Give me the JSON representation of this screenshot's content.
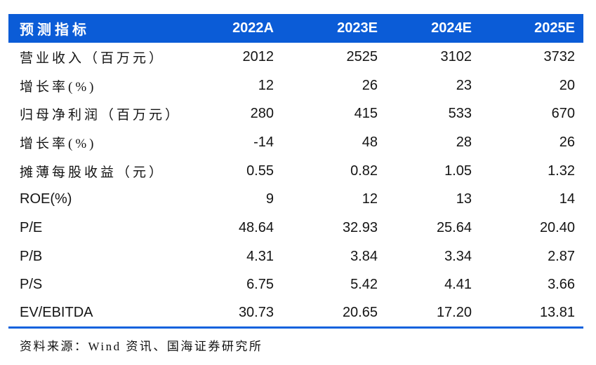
{
  "table": {
    "header": {
      "label": "预测指标",
      "cols": [
        "2022A",
        "2023E",
        "2024E",
        "2025E"
      ]
    },
    "rows": [
      {
        "label": "营业收入（百万元）",
        "values": [
          "2012",
          "2525",
          "3102",
          "3732"
        ]
      },
      {
        "label": "增长率(%)",
        "values": [
          "12",
          "26",
          "23",
          "20"
        ]
      },
      {
        "label": "归母净利润（百万元）",
        "values": [
          "280",
          "415",
          "533",
          "670"
        ]
      },
      {
        "label": "增长率(%)",
        "values": [
          "-14",
          "48",
          "28",
          "26"
        ]
      },
      {
        "label": "摊薄每股收益（元）",
        "values": [
          "0.55",
          "0.82",
          "1.05",
          "1.32"
        ]
      },
      {
        "label": "ROE(%)",
        "values": [
          "9",
          "12",
          "13",
          "14"
        ]
      },
      {
        "label": "P/E",
        "values": [
          "48.64",
          "32.93",
          "25.64",
          "20.40"
        ]
      },
      {
        "label": "P/B",
        "values": [
          "4.31",
          "3.84",
          "3.34",
          "2.87"
        ]
      },
      {
        "label": "P/S",
        "values": [
          "6.75",
          "5.42",
          "4.41",
          "3.66"
        ]
      },
      {
        "label": "EV/EBITDA",
        "values": [
          "30.73",
          "20.65",
          "17.20",
          "13.81"
        ]
      }
    ]
  },
  "footer": {
    "source": "资料来源：Wind 资讯、国海证券研究所"
  },
  "colors": {
    "header_bg": "#0b5cd7",
    "rule": "#0f62dd",
    "text": "#141414"
  }
}
